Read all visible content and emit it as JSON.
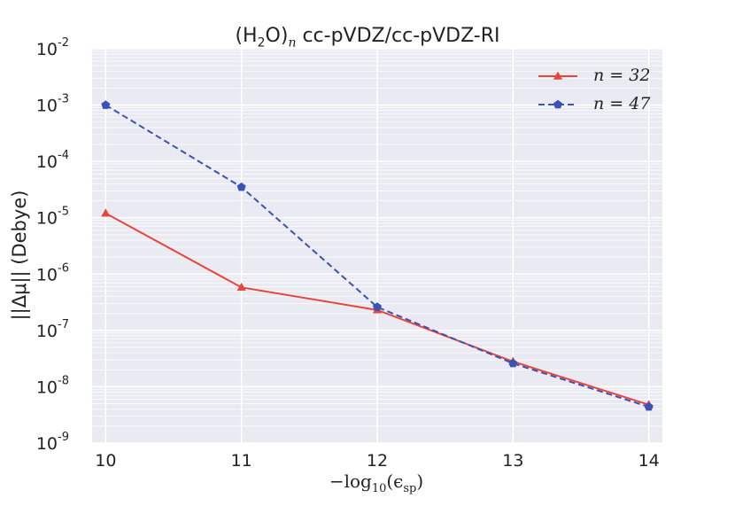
{
  "chart_data": {
    "type": "line",
    "title": {
      "base": "(H",
      "sub1": "2",
      "mid": "O)",
      "sub2": "n",
      "rest": " cc-pVDZ/cc-pVDZ-RI"
    },
    "xlabel": {
      "main": "−log",
      "sub1": "10",
      "open": "(ϵ",
      "sub2": "sp",
      "close": ")"
    },
    "ylabel": {
      "text": "||Δμ|| (Debye)",
      "prefix": "||Δ",
      "mu": "μ",
      "suffix": "|| (Debye)"
    },
    "x": [
      10,
      11,
      12,
      13,
      14
    ],
    "xlim": [
      9.9,
      14.1
    ],
    "ylim_log10": [
      -9,
      -2
    ],
    "yscale": "log",
    "x_ticks": [
      "10",
      "11",
      "12",
      "13",
      "14"
    ],
    "y_ticks": [
      {
        "base": "10",
        "exp": "-9"
      },
      {
        "base": "10",
        "exp": "-8"
      },
      {
        "base": "10",
        "exp": "-7"
      },
      {
        "base": "10",
        "exp": "-6"
      },
      {
        "base": "10",
        "exp": "-5"
      },
      {
        "base": "10",
        "exp": "-4"
      },
      {
        "base": "10",
        "exp": "-3"
      },
      {
        "base": "10",
        "exp": "-2"
      }
    ],
    "grid": true,
    "legend_position": "top-right",
    "series": [
      {
        "name": "n=32",
        "label": "n = 32",
        "values": [
          1.2e-05,
          5.8e-07,
          2.3e-07,
          2.8e-08,
          4.8e-09
        ],
        "color": "#e8463b",
        "marker": "triangle",
        "linestyle": "solid"
      },
      {
        "name": "n=47",
        "label": "n = 47",
        "values": [
          0.001,
          3.5e-05,
          2.6e-07,
          2.6e-08,
          4.4e-09
        ],
        "color": "#3c52b4",
        "marker": "pentagon",
        "linestyle": "dashed"
      }
    ],
    "colors": {
      "background": "#eaeaf2",
      "grid": "#ffffff",
      "text": "#222222"
    }
  }
}
